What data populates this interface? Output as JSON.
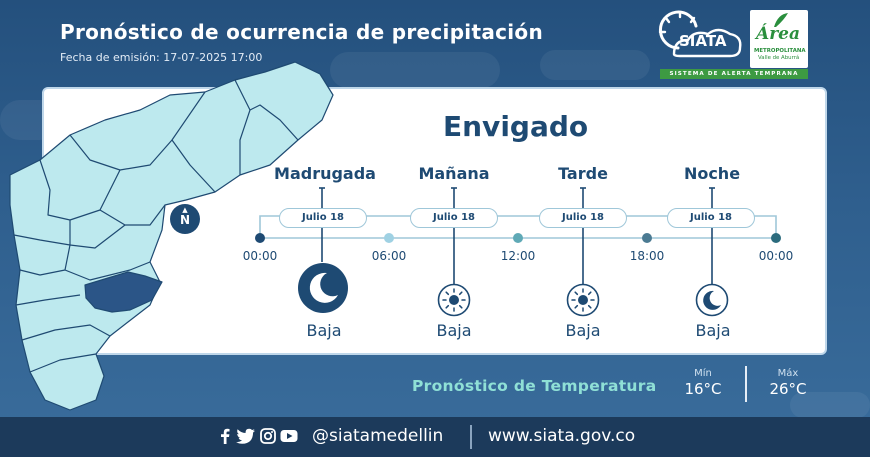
{
  "header": {
    "title": "Pronóstico de ocurrencia de precipitación",
    "subtitle_label": "Fecha de emisión:",
    "subtitle_value": "17-07-2025 17:00"
  },
  "logos": {
    "siata_text": "SIATA",
    "area_word": "Área",
    "area_line1": "METROPOLITANA",
    "area_line2": "Valle de Aburrá",
    "strip_text": "SISTEMA DE ALERTA TEMPRANA"
  },
  "map": {
    "north_label": "N",
    "north_arrow": "▲",
    "highlighted_color": "#2b5587",
    "region_color": "#bde9ee"
  },
  "forecast": {
    "municipality": "Envigado",
    "periods": [
      {
        "name": "Madrugada",
        "date": "Julio 18",
        "icon": "moon-icon",
        "level": "Baja"
      },
      {
        "name": "Mañana",
        "date": "Julio 18",
        "icon": "sun-icon",
        "level": "Baja"
      },
      {
        "name": "Tarde",
        "date": "Julio 18",
        "icon": "sun-icon",
        "level": "Baja"
      },
      {
        "name": "Noche",
        "date": "Julio 18",
        "icon": "moon-icon",
        "level": "Baja"
      }
    ],
    "ticks": [
      "00:00",
      "06:00",
      "12:00",
      "18:00",
      "00:00"
    ]
  },
  "temperature": {
    "title": "Pronóstico de Temperatura",
    "min_label": "Mín",
    "min_value": "16°C",
    "max_label": "Máx",
    "max_value": "26°C"
  },
  "footer": {
    "social_icons": [
      "facebook-icon",
      "twitter-icon",
      "instagram-icon",
      "youtube-icon"
    ],
    "handle": "@siatamedellin",
    "website": "www.siata.gov.co"
  },
  "colors": {
    "accent": "#1e4a73",
    "teal": "#8fe0d6",
    "footer": "#1c3a5b"
  }
}
